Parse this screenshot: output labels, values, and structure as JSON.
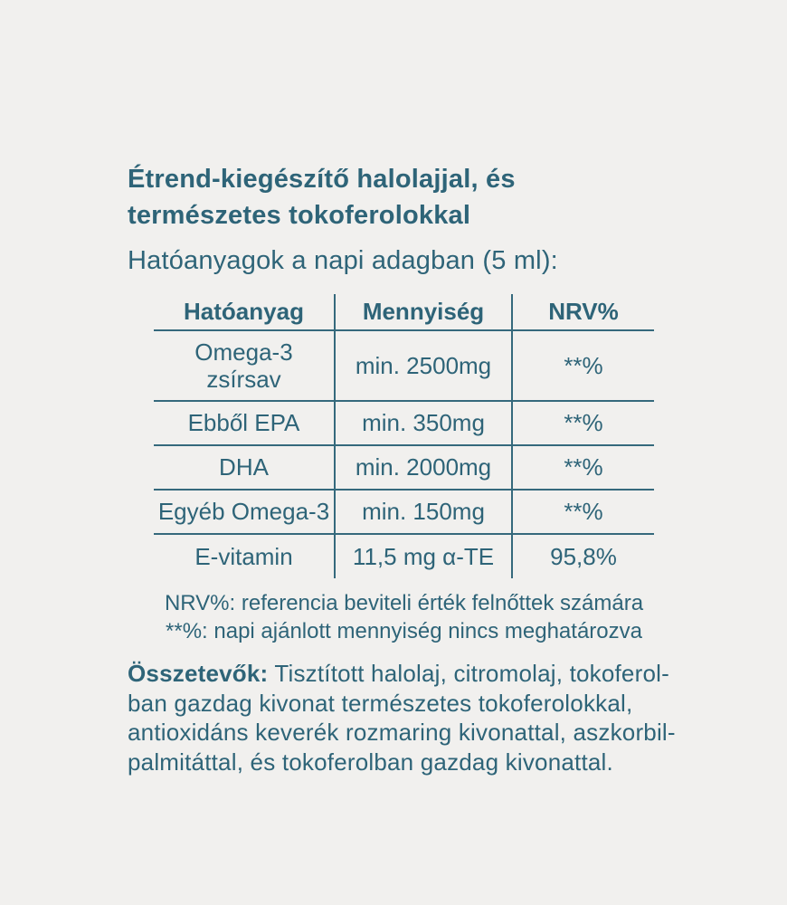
{
  "page": {
    "title": "Étrend-kiegészítő halolajjal, és természetes tokoferolokkal",
    "subtitle": "Hatóanyagok a napi adagban (5 ml):"
  },
  "table": {
    "headers": [
      "Hatóanyag",
      "Mennyiség",
      "NRV%"
    ],
    "rows": [
      {
        "substance": "Omega-3\nzsírsav",
        "amount": "min. 2500mg",
        "nrv": "**%"
      },
      {
        "substance": "Ebből EPA",
        "amount": "min. 350mg",
        "nrv": "**%"
      },
      {
        "substance": "DHA",
        "amount": "min. 2000mg",
        "nrv": "**%"
      },
      {
        "substance": "Egyéb Omega-3",
        "amount": "min. 150mg",
        "nrv": "**%"
      },
      {
        "substance": "E-vitamin",
        "amount": "11,5 mg α-TE",
        "nrv": "95,8%"
      }
    ]
  },
  "footnotes": {
    "nrv_note": "NRV%: referencia beviteli érték felnőttek számára",
    "asterisk_note": "**%: napi ajánlott mennyiség nincs meghatározva"
  },
  "ingredients": {
    "label": "Összetevők:",
    "text": "Tisztított halolaj, citromolaj, tokoferol-\nban gazdag kivonat természetes tokoferolokkal,\nantioxidáns keverék rozmaring kivonattal, aszkorbil-\npalmitáttal, és tokoferolban gazdag kivonattal."
  },
  "colors": {
    "text": "#2e6478",
    "table_border": "#35697c",
    "background": "#f1f0ee"
  }
}
